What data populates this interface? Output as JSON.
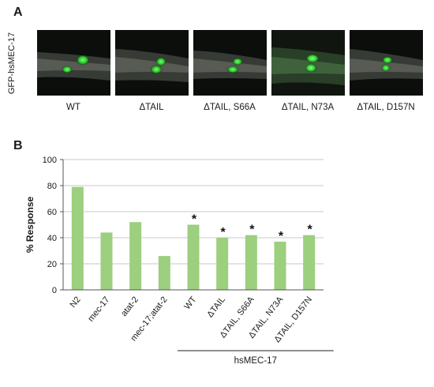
{
  "panel_a": {
    "letter": "A",
    "side_label": "GFP-hsMEC-17",
    "images": [
      {
        "label": "WT"
      },
      {
        "label": "ΔTAIL"
      },
      {
        "label": "ΔTAIL, S66A"
      },
      {
        "label": "ΔTAIL, N73A"
      },
      {
        "label": "ΔTAIL, D157N"
      }
    ]
  },
  "panel_b": {
    "letter": "B"
  },
  "colors": {
    "bar": "#9ccf7e",
    "grid": "#b8b8b8",
    "axis": "#555555",
    "gfp": "#3dff3d"
  },
  "chart_data": {
    "type": "bar",
    "categories": [
      "N2",
      "mec-17",
      "atat-2",
      "mec-17;atat-2",
      "WT",
      "ΔTAIL",
      "ΔTAIL, S66A",
      "ΔTAIL, N73A",
      "ΔTAIL, D157N"
    ],
    "values": [
      79,
      44,
      52,
      26,
      50,
      40,
      42,
      37,
      42
    ],
    "significant": [
      false,
      false,
      false,
      false,
      true,
      true,
      true,
      true,
      true
    ],
    "annotation_symbol": "*",
    "ylabel": "% Response",
    "ylim": [
      0,
      100
    ],
    "yticks": [
      0,
      20,
      40,
      60,
      80,
      100
    ],
    "grid": true,
    "group_label": "hsMEC-17",
    "group_start_category": "WT",
    "group_end_category": "ΔTAIL, D157N"
  }
}
